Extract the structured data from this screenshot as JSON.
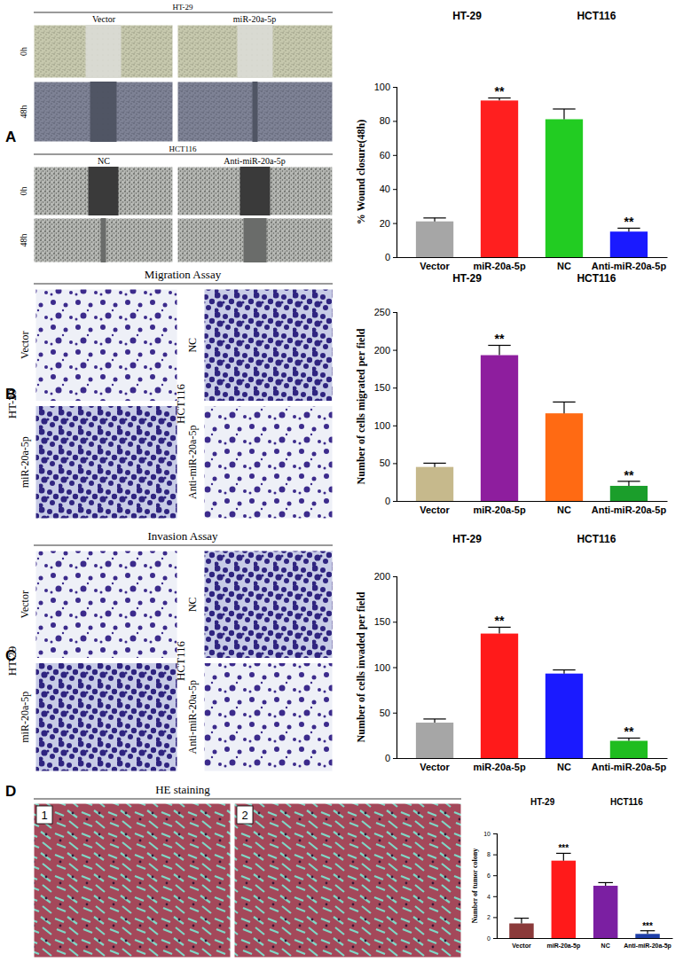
{
  "chart_data": [
    {
      "type": "bar",
      "annotations": [
        "HT-29",
        "HCT116"
      ],
      "y_label": "% Wound closure(48h)",
      "categories": [
        "Vector",
        "miR-20a-5p",
        "NC",
        "Anti-miR-20a-5p"
      ],
      "values": [
        21,
        92,
        81,
        15
      ],
      "errors": [
        2,
        1.5,
        6,
        2
      ],
      "colors": [
        "#a6a6a6",
        "#ff1f1f",
        "#22cc22",
        "#1a1aff"
      ],
      "significance": [
        null,
        "**",
        null,
        "**"
      ],
      "ylim": [
        0,
        100
      ],
      "yticks": [
        0,
        20,
        40,
        60,
        80,
        100
      ]
    },
    {
      "type": "bar",
      "annotations": [
        "HT-29",
        "HCT116"
      ],
      "y_label": "Number of cells migrated per field",
      "categories": [
        "Vector",
        "miR-20a-5p",
        "NC",
        "Anti-miR-20a-5p"
      ],
      "values": [
        45,
        193,
        116,
        20
      ],
      "errors": [
        5,
        13,
        15,
        6
      ],
      "colors": [
        "#c6b98c",
        "#8e1e9e",
        "#ff6a13",
        "#1b9e2b"
      ],
      "significance": [
        null,
        "**",
        null,
        "**"
      ],
      "ylim": [
        0,
        250
      ],
      "yticks": [
        0,
        50,
        100,
        150,
        200,
        250
      ]
    },
    {
      "type": "bar",
      "annotations": [
        "HT-29",
        "HCT116"
      ],
      "y_label": "Number of cells invaded per field",
      "categories": [
        "Vector",
        "miR-20a-5p",
        "NC",
        "Anti-miR-20a-5p"
      ],
      "values": [
        39,
        137,
        93,
        19
      ],
      "errors": [
        4,
        7,
        4,
        3
      ],
      "colors": [
        "#a6a6a6",
        "#ff1a1a",
        "#1a1aff",
        "#1fbd1f"
      ],
      "significance": [
        null,
        "**",
        null,
        "**"
      ],
      "ylim": [
        0,
        200
      ],
      "yticks": [
        0,
        50,
        100,
        150,
        200
      ]
    },
    {
      "type": "bar",
      "annotations": [
        "HT-29",
        "HCT116"
      ],
      "y_label": "Number of tumor colony",
      "categories": [
        "Vector",
        "miR-20a-5p",
        "NC",
        "Anti-miR-20a-5p"
      ],
      "values": [
        1.4,
        7.4,
        5.0,
        0.4
      ],
      "errors": [
        0.5,
        0.7,
        0.3,
        0.3
      ],
      "colors": [
        "#8b3a3a",
        "#ff1a1a",
        "#7b1fa2",
        "#1e3ea8"
      ],
      "significance": [
        null,
        "***",
        null,
        "***"
      ],
      "ylim": [
        0,
        10
      ],
      "yticks": [
        0,
        2,
        4,
        6,
        8,
        10
      ]
    }
  ],
  "figure": {
    "letters": [
      "A",
      "B",
      "C",
      "D"
    ],
    "wound": {
      "lines": [
        "HT-29",
        "HCT116"
      ],
      "conditions": [
        [
          "Vector",
          "miR-20a-5p"
        ],
        [
          "NC",
          "Anti-miR-20a-5p"
        ]
      ],
      "times": [
        "0h",
        "48h"
      ]
    },
    "migration": {
      "title": "Migration Assay",
      "lines": [
        "HT-29",
        "HCT116"
      ],
      "conditions": [
        [
          "Vector",
          "miR-20a-5p"
        ],
        [
          "NC",
          "Anti-miR-20a-5p"
        ]
      ]
    },
    "invasion": {
      "title": "Invasion Assay",
      "lines": [
        "HT-29",
        "HCT116"
      ],
      "conditions": [
        [
          "Vector",
          "miR-20a-5p"
        ],
        [
          "NC",
          "Anti-miR-20a-5p"
        ]
      ]
    },
    "he": {
      "title": "HE staining",
      "images": [
        "1",
        "2"
      ]
    }
  }
}
